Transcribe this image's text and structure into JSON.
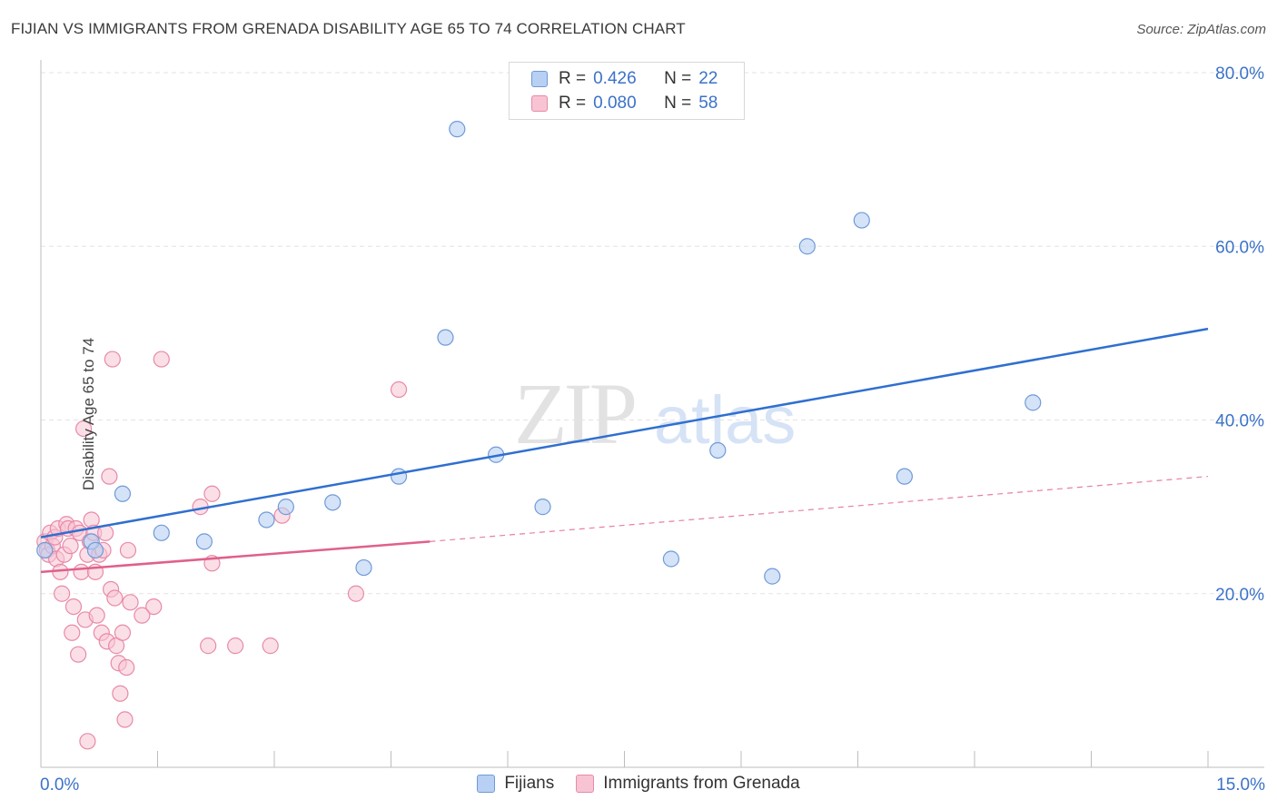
{
  "header": {
    "title": "FIJIAN VS IMMIGRANTS FROM GRENADA DISABILITY AGE 65 TO 74 CORRELATION CHART",
    "source": "Source: ZipAtlas.com"
  },
  "legend": {
    "rows": [
      {
        "r_label": "R =",
        "r_value": "0.426",
        "n_label": "N =",
        "n_value": "22"
      },
      {
        "r_label": "R =",
        "r_value": "0.080",
        "n_label": "N =",
        "n_value": "58"
      }
    ]
  },
  "watermark": {
    "zip": "ZIP",
    "atlas": "atlas"
  },
  "colors": {
    "fijians_fill": "#b8d0f3",
    "fijians_stroke": "#6f9ad8",
    "fijians_line": "#2f6fd0",
    "grenada_fill": "#f8c4d4",
    "grenada_stroke": "#e88aa8",
    "grenada_line": "#e0608a",
    "tick_label": "#3b72c8",
    "grid": "#e3e3e3"
  },
  "chart_data": {
    "type": "scatter",
    "title": "FIJIAN VS IMMIGRANTS FROM GRENADA DISABILITY AGE 65 TO 74 CORRELATION CHART",
    "xlabel": "",
    "ylabel": "Disability Age 65 to 74",
    "xlim": [
      0,
      15
    ],
    "ylim": [
      0,
      80
    ],
    "x_tick_labels": [
      "0.0%",
      "15.0%"
    ],
    "y_ticks": [
      20,
      40,
      60,
      80
    ],
    "y_tick_labels": [
      "20.0%",
      "40.0%",
      "60.0%",
      "80.0%"
    ],
    "legend_position": "top-center",
    "series": [
      {
        "name": "Fijians",
        "r": 0.426,
        "n": 22,
        "points": [
          [
            0.05,
            25.0
          ],
          [
            0.65,
            26.0
          ],
          [
            1.05,
            31.5
          ],
          [
            1.55,
            27.0
          ],
          [
            2.1,
            26.0
          ],
          [
            2.9,
            28.5
          ],
          [
            3.15,
            30.0
          ],
          [
            3.75,
            30.5
          ],
          [
            4.15,
            23.0
          ],
          [
            4.6,
            33.5
          ],
          [
            5.2,
            49.5
          ],
          [
            5.35,
            73.5
          ],
          [
            5.85,
            36.0
          ],
          [
            6.45,
            30.0
          ],
          [
            8.1,
            24.0
          ],
          [
            8.7,
            36.5
          ],
          [
            9.4,
            22.0
          ],
          [
            9.85,
            60.0
          ],
          [
            10.55,
            63.0
          ],
          [
            11.1,
            33.5
          ],
          [
            12.75,
            42.0
          ],
          [
            0.7,
            25.0
          ]
        ],
        "trend": {
          "x": [
            0.0,
            15.0
          ],
          "y": [
            26.5,
            50.5
          ]
        }
      },
      {
        "name": "Immigrants from Grenada",
        "r": 0.08,
        "n": 58,
        "points": [
          [
            0.05,
            26.0
          ],
          [
            0.08,
            25.0
          ],
          [
            0.1,
            24.5
          ],
          [
            0.12,
            27.0
          ],
          [
            0.15,
            25.5
          ],
          [
            0.18,
            26.5
          ],
          [
            0.2,
            24.0
          ],
          [
            0.22,
            27.5
          ],
          [
            0.25,
            22.5
          ],
          [
            0.27,
            20.0
          ],
          [
            0.3,
            24.5
          ],
          [
            0.33,
            28.0
          ],
          [
            0.35,
            27.5
          ],
          [
            0.38,
            25.5
          ],
          [
            0.4,
            15.5
          ],
          [
            0.42,
            18.5
          ],
          [
            0.45,
            27.5
          ],
          [
            0.48,
            13.0
          ],
          [
            0.5,
            27.0
          ],
          [
            0.52,
            22.5
          ],
          [
            0.55,
            39.0
          ],
          [
            0.57,
            17.0
          ],
          [
            0.6,
            24.5
          ],
          [
            0.63,
            26.0
          ],
          [
            0.65,
            28.5
          ],
          [
            0.68,
            27.0
          ],
          [
            0.7,
            22.5
          ],
          [
            0.72,
            17.5
          ],
          [
            0.75,
            24.5
          ],
          [
            0.78,
            15.5
          ],
          [
            0.8,
            25.0
          ],
          [
            0.83,
            27.0
          ],
          [
            0.85,
            14.5
          ],
          [
            0.88,
            33.5
          ],
          [
            0.9,
            20.5
          ],
          [
            0.92,
            47.0
          ],
          [
            0.95,
            19.5
          ],
          [
            0.97,
            14.0
          ],
          [
            1.0,
            12.0
          ],
          [
            1.02,
            8.5
          ],
          [
            1.05,
            15.5
          ],
          [
            1.08,
            5.5
          ],
          [
            1.1,
            11.5
          ],
          [
            1.12,
            25.0
          ],
          [
            1.15,
            19.0
          ],
          [
            1.45,
            18.5
          ],
          [
            1.55,
            47.0
          ],
          [
            2.05,
            30.0
          ],
          [
            2.15,
            14.0
          ],
          [
            2.2,
            31.5
          ],
          [
            2.2,
            23.5
          ],
          [
            2.5,
            14.0
          ],
          [
            2.95,
            14.0
          ],
          [
            3.1,
            29.0
          ],
          [
            4.05,
            20.0
          ],
          [
            4.6,
            43.5
          ],
          [
            0.6,
            3.0
          ],
          [
            1.3,
            17.5
          ]
        ],
        "trend": {
          "x": [
            0.0,
            5.0
          ],
          "y": [
            22.5,
            26.0
          ]
        },
        "trend_extension": {
          "x": [
            5.0,
            15.0
          ],
          "y": [
            26.0,
            33.5
          ]
        }
      }
    ]
  },
  "bottom_legend": {
    "items": [
      {
        "label": "Fijians"
      },
      {
        "label": "Immigrants from Grenada"
      }
    ]
  }
}
